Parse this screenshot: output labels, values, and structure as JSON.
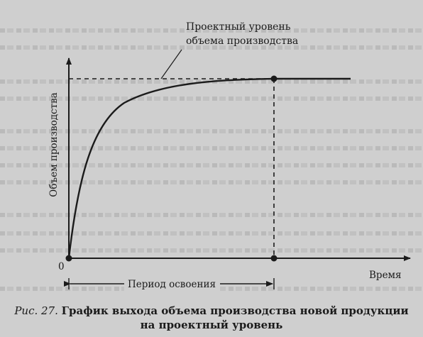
{
  "figure": {
    "y_axis_label": "Объем производства",
    "x_axis_label": "Время",
    "origin_label": "0",
    "level_label_line1": "Проектный уровень",
    "level_label_line2": "объема производства",
    "period_label": "Период освоения"
  },
  "caption": {
    "figure_number": "Рис. 27.",
    "title_line1": "График выхода объема производства новой продукции",
    "title_line2": "на проектный уровень"
  },
  "colors": {
    "background": "#cfcfcf",
    "ink": "#1b1b1b"
  }
}
